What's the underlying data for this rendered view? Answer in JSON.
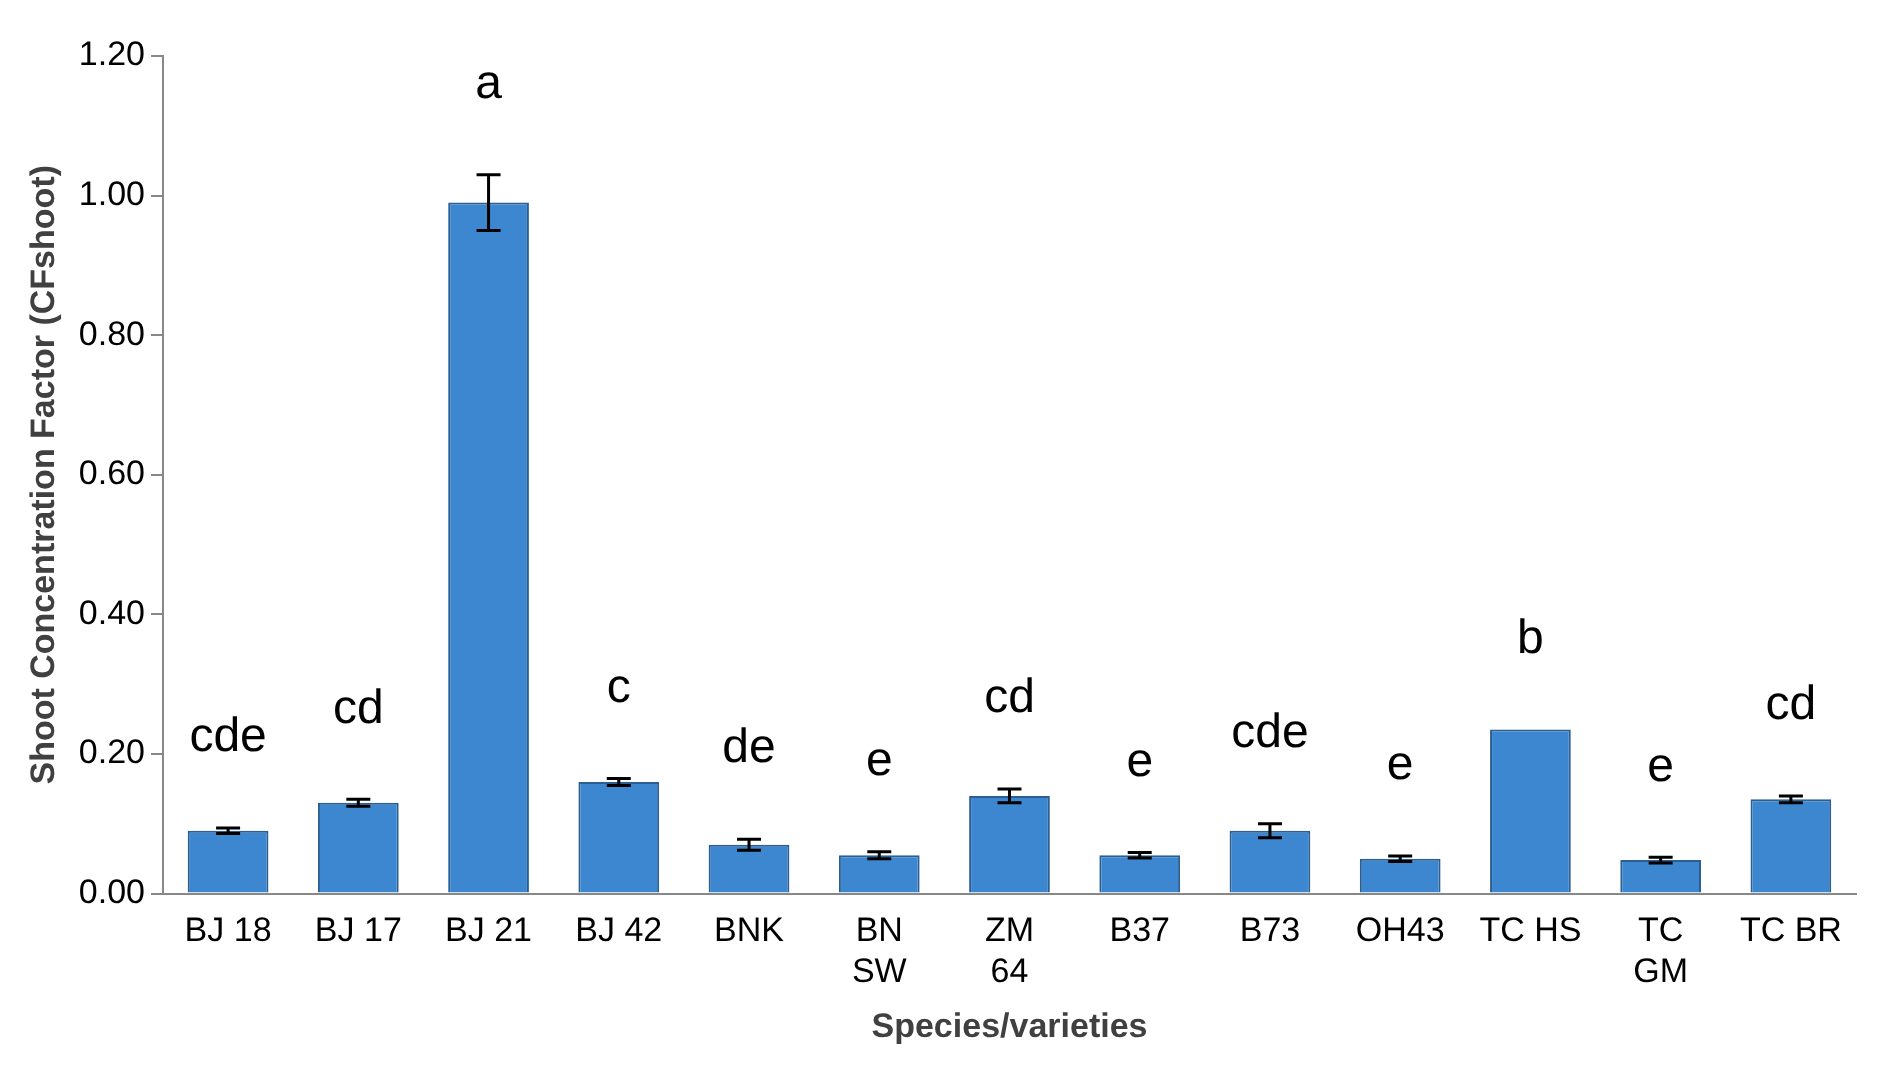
{
  "chart_data": {
    "type": "bar",
    "xlabel": "Species/varieties",
    "ylabel": "Shoot Concentration Factor (CFshoot)",
    "categories": [
      "BJ 18",
      "BJ 17",
      "BJ 21",
      "BJ 42",
      "BNK",
      "BN\nSW",
      "ZM\n64",
      "B37",
      "B73",
      "OH43",
      "TC HS",
      "TC\nGM",
      "TC BR"
    ],
    "values": [
      0.09,
      0.13,
      0.99,
      0.16,
      0.07,
      0.055,
      0.14,
      0.055,
      0.09,
      0.05,
      0.235,
      0.048,
      0.135
    ],
    "errors": [
      0.004,
      0.005,
      0.04,
      0.005,
      0.008,
      0.005,
      0.01,
      0.004,
      0.01,
      0.004,
      null,
      0.004,
      0.005
    ],
    "color": "#3c87cf",
    "ylim": [
      0,
      1.2
    ],
    "yticks": [
      {
        "value": 0,
        "label": "0.00"
      },
      {
        "value": 0.2,
        "label": "0.20"
      },
      {
        "value": 0.4,
        "label": "0.40"
      },
      {
        "value": 0.6,
        "label": "0.60"
      },
      {
        "value": 0.8,
        "label": "0.80"
      },
      {
        "value": 1,
        "label": "1.00"
      },
      {
        "value": 1.2,
        "label": "1.20"
      }
    ],
    "grid": false,
    "legend": false,
    "annotations": [
      "cde",
      "cd",
      "a",
      "c",
      "de",
      "e",
      "cd",
      "e",
      "cde",
      "e",
      "b",
      "e",
      "cd"
    ]
  }
}
